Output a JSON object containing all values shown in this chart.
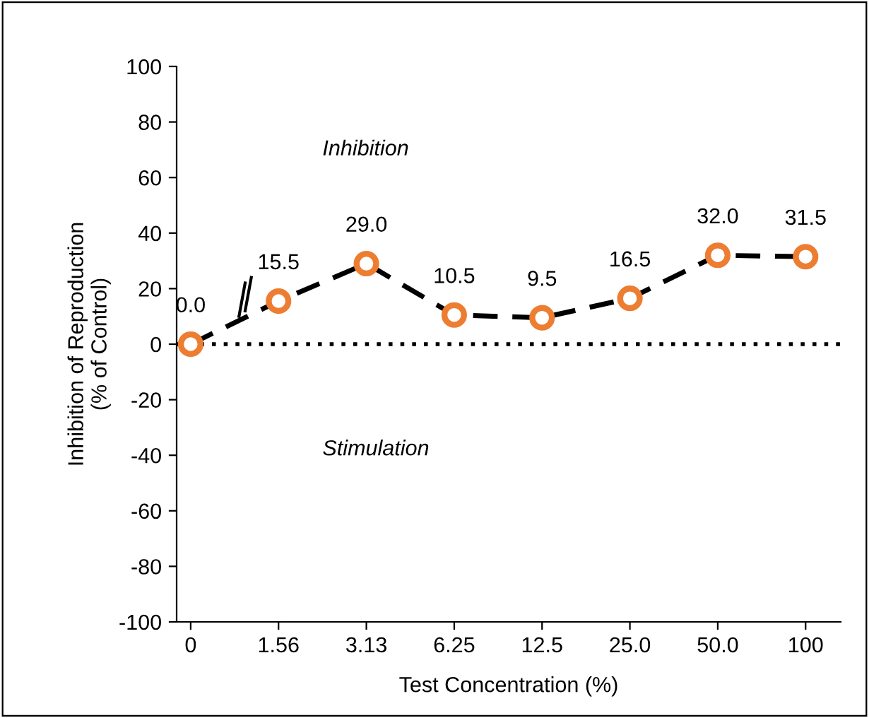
{
  "chart_data": {
    "type": "line",
    "xlabel": "Test Concentration (%)",
    "ylabel": "Inhibition of Reproduction\n(% of Control)",
    "categories": [
      "0",
      "1.56",
      "3.13",
      "6.25",
      "12.5",
      "25.0",
      "50.0",
      "100"
    ],
    "series": [
      {
        "color": "#000000",
        "line_style": "dashed",
        "marker": "none",
        "values": [
          0.0,
          15.5,
          29.0,
          10.5,
          9.5,
          16.5,
          32.0,
          31.5
        ]
      },
      {
        "type": "scatter",
        "color": "#ed7d31",
        "marker": "circle",
        "values": [
          0.0,
          15.5,
          29.0,
          10.5,
          9.5,
          16.5,
          32.0,
          31.5
        ],
        "value_labels": [
          "0.0",
          "15.5",
          "29.0",
          "10.5",
          "9.5",
          "16.5",
          "32.0",
          "31.5"
        ]
      }
    ],
    "ylim": [
      -100,
      100
    ],
    "yticks": [
      -100,
      -80,
      -60,
      -40,
      -20,
      0,
      20,
      40,
      60,
      80,
      100
    ],
    "ref_lines": [
      {
        "axis": "y",
        "value": 0,
        "line_style": "dotted",
        "color": "#000000"
      }
    ],
    "annotations": [
      "Inhibition",
      "Stimulation"
    ],
    "grid": false,
    "legend": false
  }
}
